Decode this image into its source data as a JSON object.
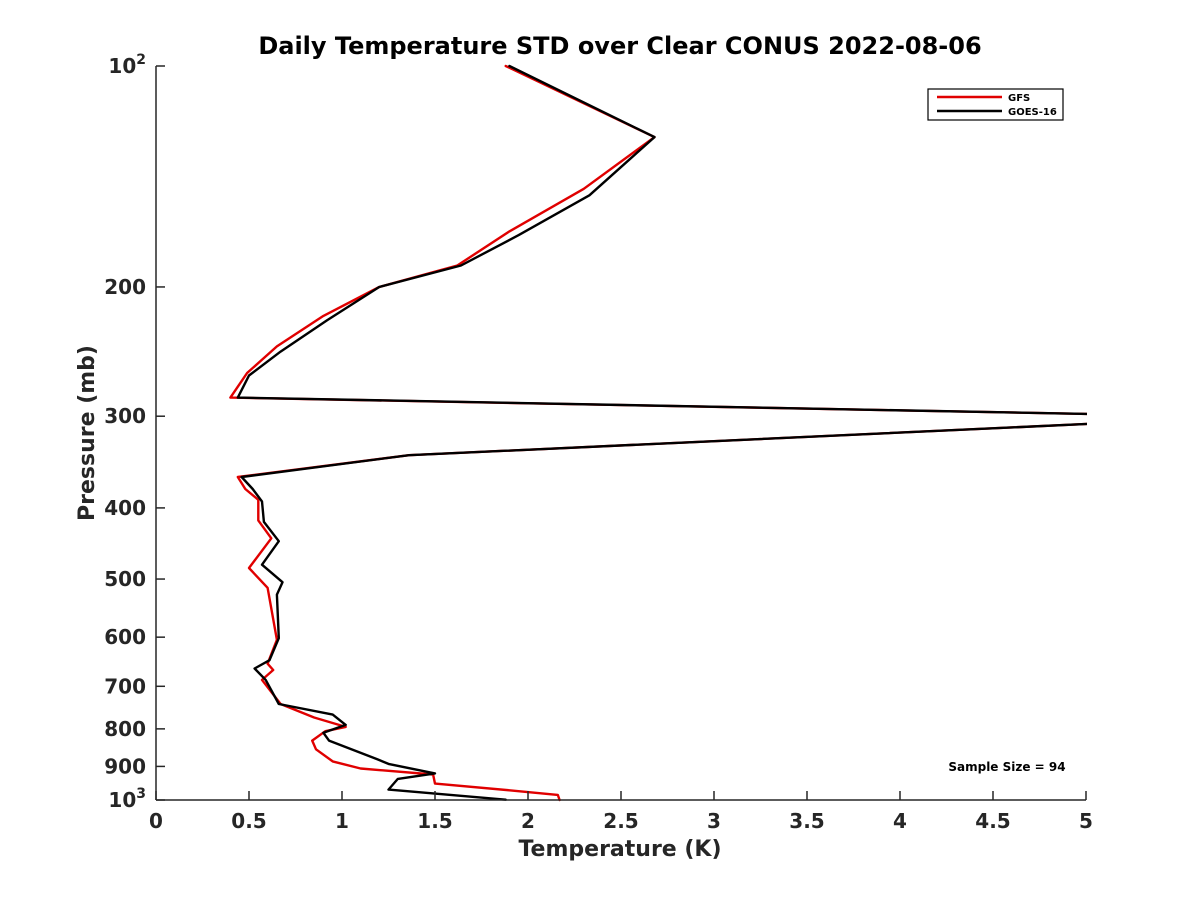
{
  "chart_data": {
    "type": "line",
    "title": "Daily Temperature STD over Clear CONUS 2022-08-06",
    "xlabel": "Temperature (K)",
    "ylabel": "Pressure (mb)",
    "xlim": [
      0,
      5
    ],
    "ylim": [
      100,
      1000
    ],
    "yscale": "log",
    "y_reversed": true,
    "grid": false,
    "legend_position": "top-right",
    "x_ticks": [
      {
        "value": 0,
        "label": "0"
      },
      {
        "value": 0.5,
        "label": "0.5"
      },
      {
        "value": 1,
        "label": "1"
      },
      {
        "value": 1.5,
        "label": "1.5"
      },
      {
        "value": 2,
        "label": "2"
      },
      {
        "value": 2.5,
        "label": "2.5"
      },
      {
        "value": 3,
        "label": "3"
      },
      {
        "value": 3.5,
        "label": "3.5"
      },
      {
        "value": 4,
        "label": "4"
      },
      {
        "value": 4.5,
        "label": "4.5"
      },
      {
        "value": 5,
        "label": "5"
      }
    ],
    "y_ticks": [
      {
        "value": 100,
        "base": "10",
        "exp": "2"
      },
      {
        "value": 200,
        "base": "200",
        "exp": ""
      },
      {
        "value": 300,
        "base": "300",
        "exp": ""
      },
      {
        "value": 400,
        "base": "400",
        "exp": ""
      },
      {
        "value": 500,
        "base": "500",
        "exp": ""
      },
      {
        "value": 600,
        "base": "600",
        "exp": ""
      },
      {
        "value": 700,
        "base": "700",
        "exp": ""
      },
      {
        "value": 800,
        "base": "800",
        "exp": ""
      },
      {
        "value": 900,
        "base": "900",
        "exp": ""
      },
      {
        "value": 1000,
        "base": "10",
        "exp": "3"
      }
    ],
    "annotation": "Sample Size = 94",
    "series": [
      {
        "name": "GFS",
        "color": "#e00000",
        "points": [
          [
            1.88,
            100
          ],
          [
            2.68,
            125
          ],
          [
            2.3,
            147
          ],
          [
            1.9,
            168
          ],
          [
            1.62,
            187
          ],
          [
            1.2,
            200
          ],
          [
            0.9,
            219
          ],
          [
            0.65,
            241
          ],
          [
            0.49,
            262
          ],
          [
            0.4,
            283
          ],
          [
            5.05,
            298
          ],
          [
            5.05,
            307
          ],
          [
            1.36,
            339
          ],
          [
            0.44,
            363
          ],
          [
            0.48,
            377
          ],
          [
            0.55,
            390
          ],
          [
            0.55,
            416
          ],
          [
            0.62,
            440
          ],
          [
            0.5,
            483
          ],
          [
            0.6,
            514
          ],
          [
            0.65,
            605
          ],
          [
            0.6,
            652
          ],
          [
            0.63,
            665
          ],
          [
            0.57,
            686
          ],
          [
            0.67,
            740
          ],
          [
            0.85,
            772
          ],
          [
            1.02,
            795
          ],
          [
            0.91,
            806
          ],
          [
            0.84,
            830
          ],
          [
            0.86,
            853
          ],
          [
            0.95,
            886
          ],
          [
            1.1,
            906
          ],
          [
            1.49,
            923
          ],
          [
            1.5,
            950
          ],
          [
            1.9,
            970
          ],
          [
            2.16,
            984
          ],
          [
            2.17,
            1000
          ]
        ]
      },
      {
        "name": "GOES-16",
        "color": "#000000",
        "points": [
          [
            1.9,
            100
          ],
          [
            2.68,
            125
          ],
          [
            2.33,
            150
          ],
          [
            1.95,
            170
          ],
          [
            1.64,
            187
          ],
          [
            1.2,
            200
          ],
          [
            0.92,
            222
          ],
          [
            0.67,
            245
          ],
          [
            0.5,
            264
          ],
          [
            0.44,
            283
          ],
          [
            5.05,
            298
          ],
          [
            5.05,
            307
          ],
          [
            1.36,
            339
          ],
          [
            0.46,
            363
          ],
          [
            0.52,
            377
          ],
          [
            0.57,
            392
          ],
          [
            0.58,
            418
          ],
          [
            0.66,
            444
          ],
          [
            0.57,
            478
          ],
          [
            0.68,
            505
          ],
          [
            0.65,
            525
          ],
          [
            0.66,
            602
          ],
          [
            0.61,
            645
          ],
          [
            0.53,
            662
          ],
          [
            0.59,
            686
          ],
          [
            0.66,
            740
          ],
          [
            0.95,
            765
          ],
          [
            1.02,
            790
          ],
          [
            0.9,
            810
          ],
          [
            0.93,
            830
          ],
          [
            1.19,
            880
          ],
          [
            1.25,
            893
          ],
          [
            1.5,
            920
          ],
          [
            1.3,
            936
          ],
          [
            1.25,
            968
          ],
          [
            1.88,
            999
          ]
        ]
      }
    ]
  }
}
